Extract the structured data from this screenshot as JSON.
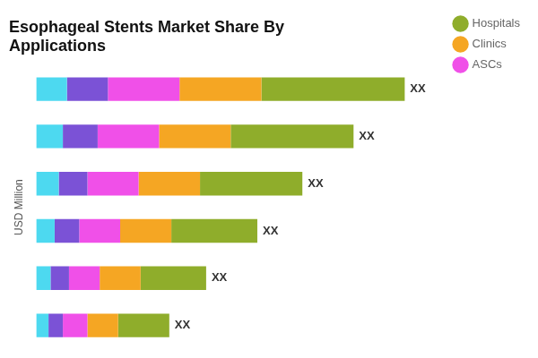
{
  "chart_data": {
    "type": "bar",
    "orientation": "horizontal",
    "stacked": true,
    "title": "Esophageal Stents Market Share By\nApplications",
    "ylabel": "USD Million",
    "categories": [
      null,
      null,
      null,
      null,
      null,
      null
    ],
    "series": [
      {
        "color": "#4dd9f0",
        "values": [
          1.5,
          1.3,
          1.1,
          0.9,
          0.7,
          0.6
        ]
      },
      {
        "color": "#7b52d6",
        "values": [
          2.0,
          1.7,
          1.4,
          1.2,
          0.9,
          0.7
        ]
      },
      {
        "name": "ASCs",
        "color": "#f050e8",
        "values": [
          3.5,
          3.0,
          2.5,
          2.0,
          1.5,
          1.2
        ]
      },
      {
        "name": "Clinics",
        "color": "#f5a623",
        "values": [
          4.0,
          3.5,
          3.0,
          2.5,
          2.0,
          1.5
        ]
      },
      {
        "name": "Hospitals",
        "color": "#8fad2b",
        "values": [
          7.0,
          6.0,
          5.0,
          4.2,
          3.2,
          2.5
        ]
      }
    ],
    "annotation": "XX",
    "xlim": [
      0,
      20
    ],
    "tick_labels": false,
    "grid": false,
    "legend": "right"
  }
}
